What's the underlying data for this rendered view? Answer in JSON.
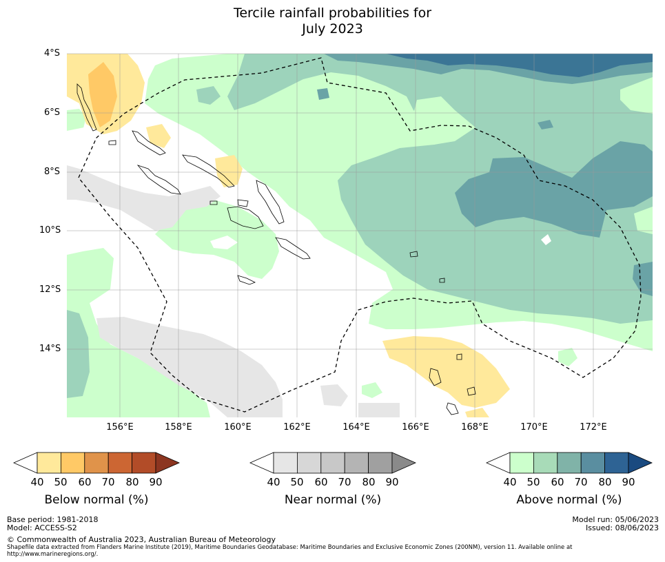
{
  "title_line1": "Tercile rainfall probabilities for",
  "title_line2": "July 2023",
  "map": {
    "lat_labels": [
      "4°S",
      "6°S",
      "8°S",
      "10°S",
      "12°S",
      "14°S"
    ],
    "lon_labels": [
      "156°E",
      "158°E",
      "160°E",
      "162°E",
      "164°E",
      "166°E",
      "168°E",
      "170°E",
      "172°E"
    ]
  },
  "colorbars": [
    {
      "title": "Below normal (%)",
      "ticks": [
        "40",
        "50",
        "60",
        "70",
        "80",
        "90"
      ],
      "colors": [
        "#ffffff",
        "#ffe99b",
        "#ffc966",
        "#e0934a",
        "#cc6633",
        "#b24c28",
        "#8c3520"
      ]
    },
    {
      "title": "Near normal (%)",
      "ticks": [
        "40",
        "50",
        "60",
        "70",
        "80",
        "90"
      ],
      "colors": [
        "#ffffff",
        "#e6e6e6",
        "#d7d7d7",
        "#c8c8c8",
        "#b4b4b4",
        "#a0a0a0",
        "#8a8a8a"
      ]
    },
    {
      "title": "Above normal (%)",
      "ticks": [
        "40",
        "50",
        "60",
        "70",
        "80",
        "90"
      ],
      "colors": [
        "#ffffff",
        "#ccffcc",
        "#a8dbb8",
        "#80b3a8",
        "#5a8ea0",
        "#2e6394",
        "#1a4a80"
      ]
    }
  ],
  "footer": {
    "base_period": "Base period: 1981-2018",
    "model": "Model: ACCESS-S2",
    "model_run": "Model run: 05/06/2023",
    "issued": "Issued: 08/06/2023",
    "copyright": "© Commonwealth of Australia 2023, Australian Bureau of Meteorology",
    "shapefile_line1": "Shapefile data extracted from Flanders Marine Institute (2019), Maritime Boundaries Geodatabase: Maritime Boundaries and Exclusive Economic Zones (200NM), version 11. Available online at",
    "shapefile_line2": "http://www.marineregions.org/."
  }
}
